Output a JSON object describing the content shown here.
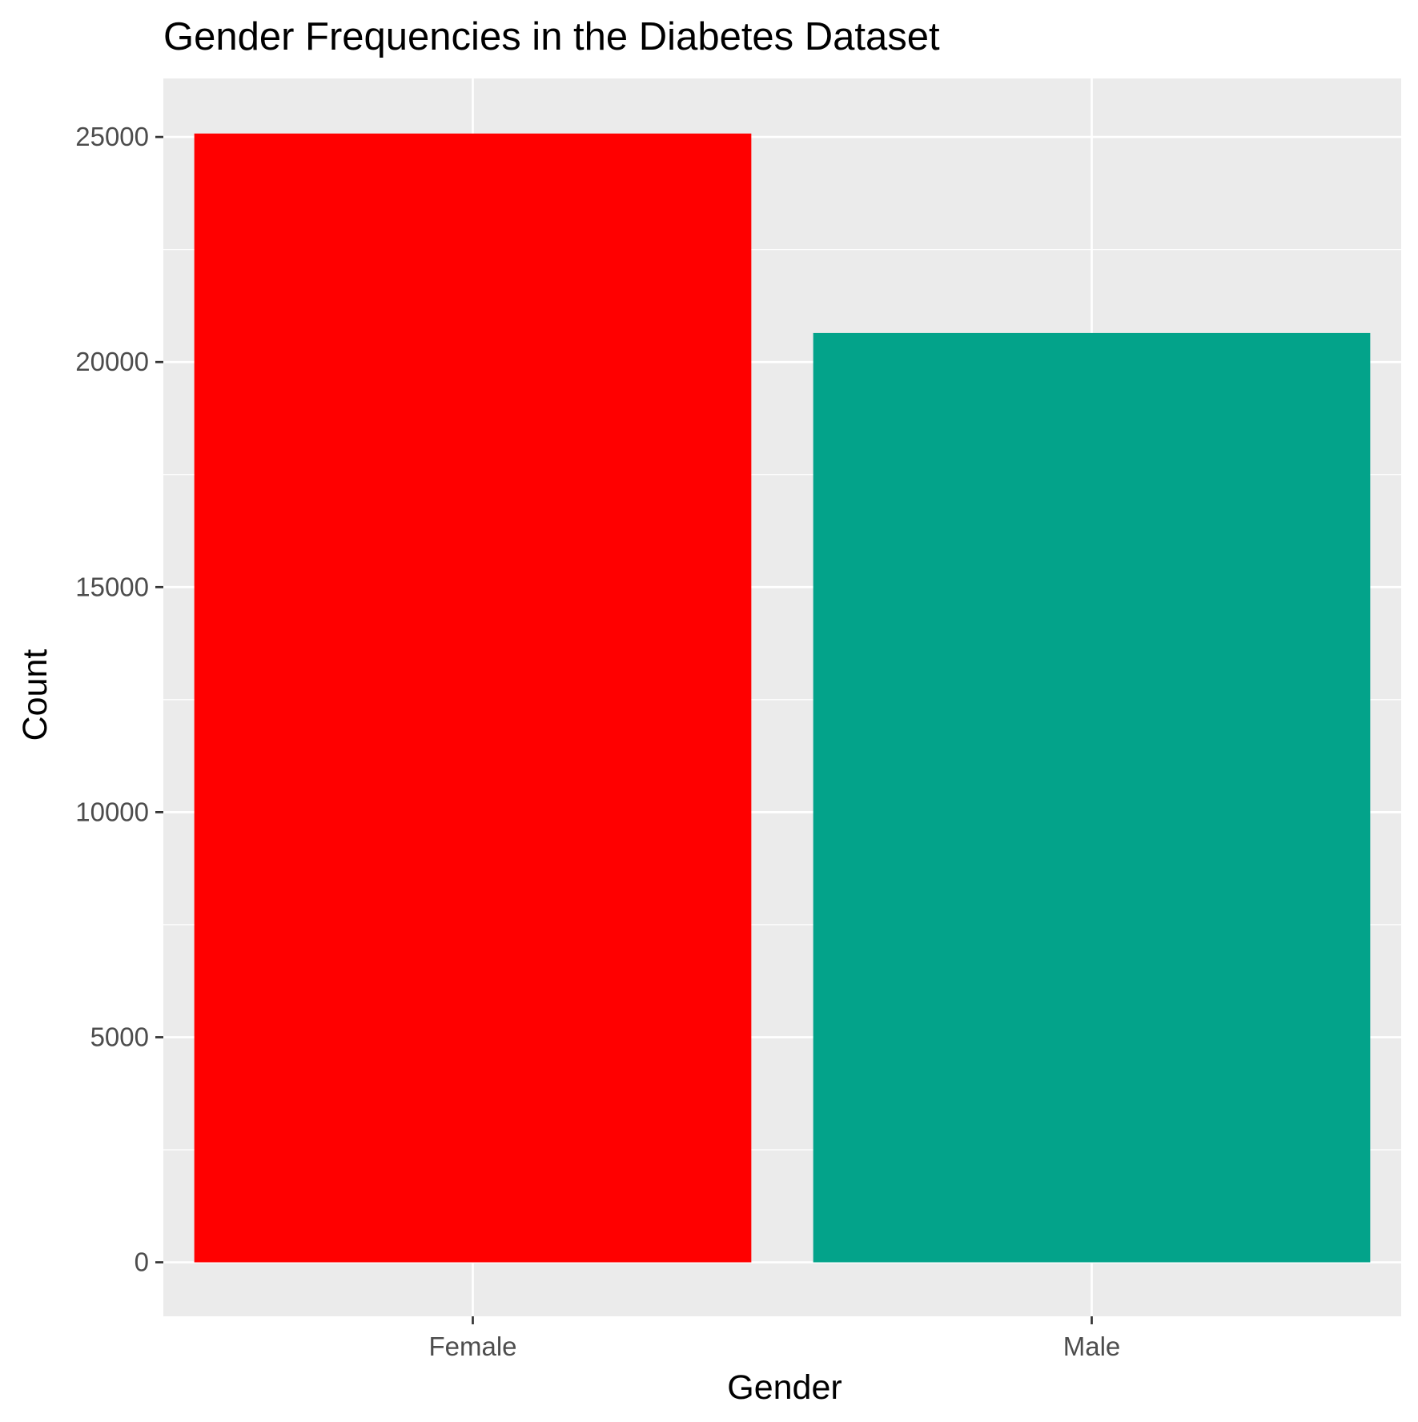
{
  "chart_data": {
    "type": "bar",
    "title": "Gender Frequencies in the Diabetes Dataset",
    "xlabel": "Gender",
    "ylabel": "Count",
    "categories": [
      "Female",
      "Male"
    ],
    "values": [
      25077,
      20645
    ],
    "colors": [
      "#FF0000",
      "#03A38A"
    ],
    "ylim": [
      -1200,
      26300
    ],
    "yticks": [
      0,
      5000,
      10000,
      15000,
      20000,
      25000
    ],
    "ytick_labels": [
      "0",
      "5000",
      "10000",
      "15000",
      "20000",
      "25000"
    ],
    "grid": true,
    "legend": "none",
    "panel_background": "#EBEBEB",
    "gridline_color": "#FFFFFF",
    "tick_color": "#333333"
  }
}
